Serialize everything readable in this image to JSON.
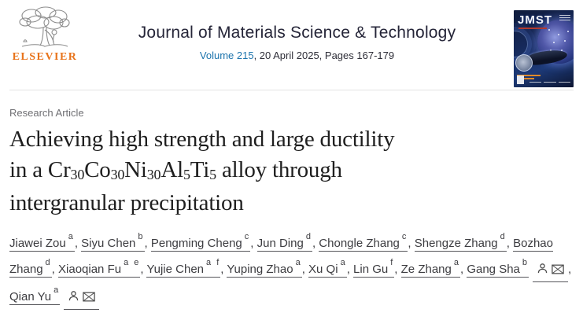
{
  "header": {
    "publisher_label": "ELSEVIER",
    "journal_title": "Journal of Materials Science & Technology",
    "volume_link": "Volume 215",
    "issue_meta": ", 20 April 2025, Pages 167-179",
    "cover": {
      "magazine_title": "JMST"
    }
  },
  "article": {
    "type_label": "Research Article",
    "title_lines": [
      [
        {
          "t": "Achieving high strength and large ductility"
        }
      ],
      [
        {
          "t": "in a Cr"
        },
        {
          "t": "30",
          "sub": true
        },
        {
          "t": "Co"
        },
        {
          "t": "30",
          "sub": true
        },
        {
          "t": "Ni"
        },
        {
          "t": "30",
          "sub": true
        },
        {
          "t": "Al"
        },
        {
          "t": "5",
          "sub": true
        },
        {
          "t": "Ti"
        },
        {
          "t": "5",
          "sub": true
        },
        {
          "t": " alloy through"
        }
      ],
      [
        {
          "t": "intergranular precipitation"
        }
      ]
    ]
  },
  "authors": {
    "separator": ", ",
    "list": [
      {
        "name": "Jiawei Zou",
        "sup": "a",
        "corresponding": false
      },
      {
        "name": "Siyu Chen",
        "sup": "b",
        "corresponding": false
      },
      {
        "name": "Pengming Cheng",
        "sup": "c",
        "corresponding": false
      },
      {
        "name": "Jun Ding",
        "sup": "d",
        "corresponding": false
      },
      {
        "name": "Chongle Zhang",
        "sup": "c",
        "corresponding": false
      },
      {
        "name": "Shengze Zhang",
        "sup": "d",
        "corresponding": false
      },
      {
        "name": "Bozhao Zhang",
        "sup": "d",
        "corresponding": false
      },
      {
        "name": "Xiaoqian Fu",
        "sup": "a e",
        "corresponding": false
      },
      {
        "name": "Yujie Chen",
        "sup": "a f",
        "corresponding": false
      },
      {
        "name": "Yuping Zhao",
        "sup": "a",
        "corresponding": false
      },
      {
        "name": "Xu Qi",
        "sup": "a",
        "corresponding": false
      },
      {
        "name": "Lin Gu",
        "sup": "f",
        "corresponding": false
      },
      {
        "name": "Ze Zhang",
        "sup": "a",
        "corresponding": false
      },
      {
        "name": "Gang Sha",
        "sup": "b",
        "corresponding": true
      },
      {
        "name": "Qian Yu",
        "sup": "a",
        "corresponding": true
      }
    ]
  },
  "colors": {
    "elsevier_orange": "#e8731a",
    "journal_title_navy": "#252538",
    "link_blue": "#1d74ad",
    "article_title_black": "#1f1f1f",
    "author_gray": "#3c3c40",
    "label_gray": "#6f6f73",
    "divider_gray": "#e3e3e3",
    "cover_navy": "#101c3c"
  }
}
